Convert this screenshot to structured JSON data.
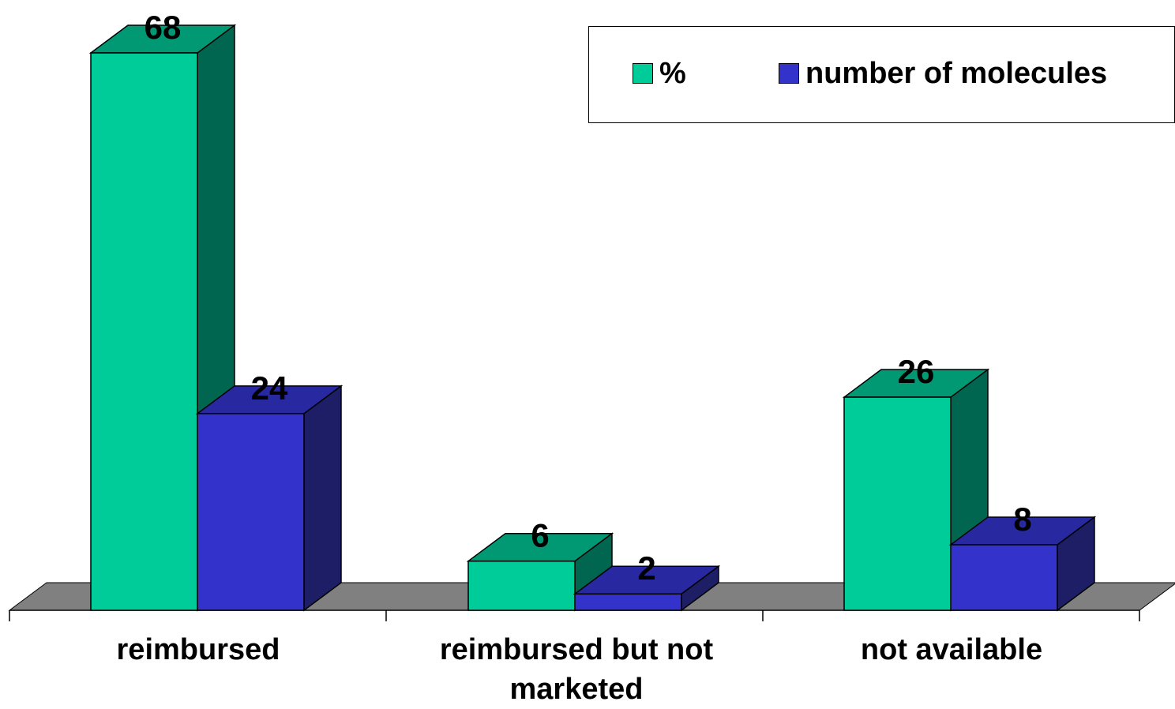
{
  "chart_data": {
    "type": "bar",
    "categories": [
      "reimbursed",
      "reimbursed but not marketed",
      "not available"
    ],
    "series": [
      {
        "name": "%",
        "values": [
          68,
          6,
          26
        ],
        "color": "#00CC99",
        "side_color": "#006650",
        "top_color": "#009973"
      },
      {
        "name": "number of molecules",
        "values": [
          24,
          2,
          8
        ],
        "color": "#3333CC",
        "side_color": "#1E1E66",
        "top_color": "#2828A0"
      }
    ],
    "ylim": [
      0,
      68
    ],
    "data_labels": true,
    "legend_position": "top-right",
    "floor_color": "#808080"
  }
}
